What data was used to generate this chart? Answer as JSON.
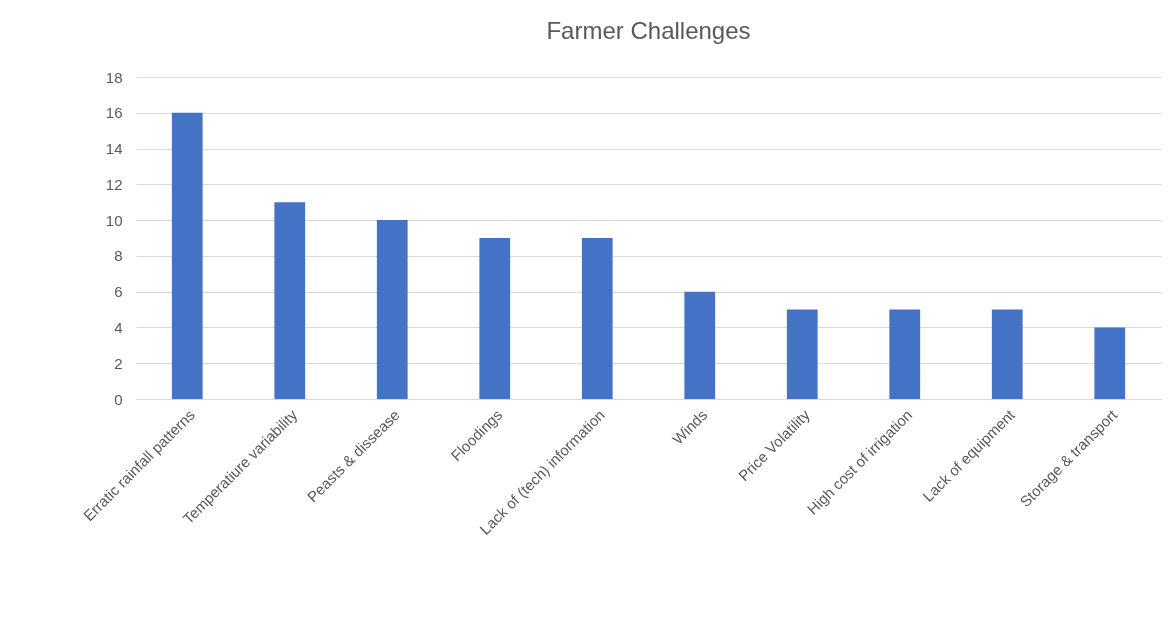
{
  "chart_data": {
    "type": "bar",
    "title": "Farmer Challenges",
    "categories": [
      "Erratic rainfall patterns",
      "Temperatiure variability",
      "Peasts & dissease",
      "Floodings",
      "Lack of (tech) information",
      "Winds",
      "Price Volatility",
      "High cost of irrigation",
      "Lack of equipment",
      "Storage & transport"
    ],
    "values": [
      16,
      11,
      10,
      9,
      9,
      6,
      5,
      5,
      5,
      4
    ],
    "color": "#4472c4",
    "ylim": [
      0,
      18
    ],
    "yticks": [
      0,
      2,
      4,
      6,
      8,
      10,
      12,
      14,
      16,
      18
    ],
    "grid": "y"
  }
}
